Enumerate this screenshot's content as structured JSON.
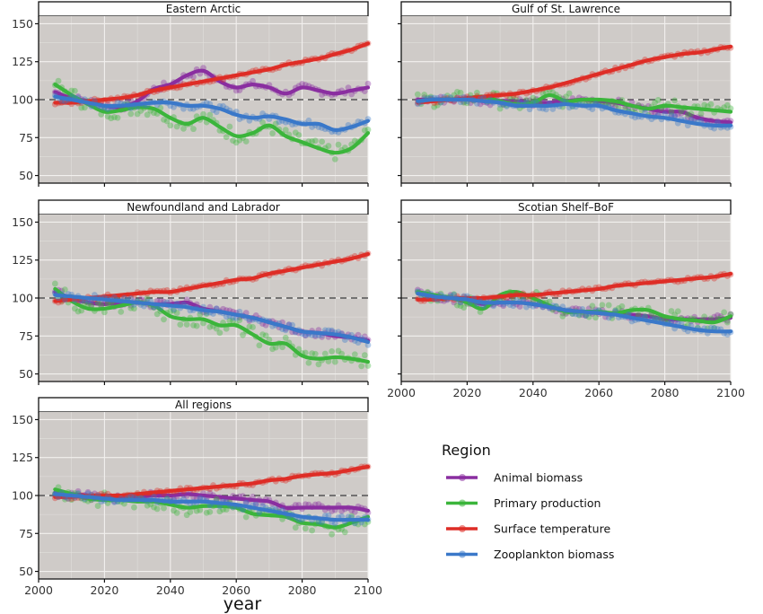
{
  "chart_data": {
    "type": "line",
    "title": "",
    "xlabel": "year",
    "ylabel": "",
    "xlim": [
      2000,
      2100
    ],
    "ylim": [
      45,
      155
    ],
    "x_ticks": [
      2000,
      2020,
      2040,
      2060,
      2080,
      2100
    ],
    "y_ticks": [
      50,
      75,
      100,
      125,
      150
    ],
    "reference_line": 100,
    "grid": true,
    "legend": {
      "title": "Region",
      "placement": "right",
      "entries": [
        "Animal biomass",
        "Primary production",
        "Surface temperature",
        "Zooplankton biomass"
      ]
    },
    "colors": {
      "Animal biomass": "#8a2ea0",
      "Primary production": "#3bb53b",
      "Surface temperature": "#de2d26",
      "Zooplankton biomass": "#3a78c9"
    },
    "x": [
      2005,
      2010,
      2015,
      2020,
      2025,
      2030,
      2035,
      2040,
      2045,
      2050,
      2055,
      2060,
      2065,
      2070,
      2075,
      2080,
      2085,
      2090,
      2095,
      2100
    ],
    "panels": [
      {
        "title": "Eastern Arctic",
        "series": [
          {
            "name": "Animal biomass",
            "values": [
              105,
              101,
              99,
              96,
              95,
              99,
              107,
              110,
              116,
              119,
              112,
              108,
              110,
              108,
              104,
              108,
              106,
              104,
              106,
              108
            ]
          },
          {
            "name": "Primary production",
            "values": [
              110,
              103,
              97,
              92,
              93,
              95,
              94,
              88,
              84,
              88,
              82,
              76,
              78,
              83,
              76,
              72,
              68,
              65,
              68,
              78
            ]
          },
          {
            "name": "Surface temperature",
            "values": [
              98,
              98,
              99,
              100,
              101,
              103,
              106,
              108,
              110,
              112,
              114,
              116,
              118,
              120,
              123,
              125,
              127,
              130,
              133,
              137
            ]
          },
          {
            "name": "Zooplankton biomass",
            "values": [
              102,
              100,
              98,
              96,
              96,
              97,
              98,
              98,
              96,
              96,
              94,
              90,
              88,
              89,
              87,
              84,
              84,
              80,
              82,
              86
            ]
          }
        ]
      },
      {
        "title": "Gulf of St. Lawrence",
        "series": [
          {
            "name": "Animal biomass",
            "values": [
              100,
              100,
              100,
              100,
              99,
              99,
              99,
              98,
              98,
              99,
              100,
              99,
              98,
              96,
              94,
              92,
              92,
              88,
              86,
              85
            ]
          },
          {
            "name": "Primary production",
            "values": [
              99,
              100,
              100,
              101,
              102,
              99,
              97,
              98,
              103,
              99,
              100,
              100,
              99,
              96,
              94,
              96,
              95,
              94,
              93,
              92
            ]
          },
          {
            "name": "Surface temperature",
            "values": [
              98,
              99,
              100,
              101,
              102,
              103,
              104,
              106,
              108,
              111,
              114,
              117,
              120,
              123,
              126,
              128,
              130,
              131,
              133,
              135
            ]
          },
          {
            "name": "Zooplankton biomass",
            "values": [
              99,
              100,
              100,
              100,
              99,
              98,
              96,
              96,
              96,
              97,
              96,
              96,
              93,
              91,
              89,
              88,
              86,
              84,
              83,
              83
            ]
          }
        ]
      },
      {
        "title": "Newfoundland and Labrador",
        "series": [
          {
            "name": "Animal biomass",
            "values": [
              104,
              100,
              97,
              96,
              97,
              97,
              96,
              96,
              97,
              93,
              91,
              89,
              87,
              84,
              81,
              78,
              77,
              75,
              74,
              72
            ]
          },
          {
            "name": "Primary production",
            "values": [
              106,
              98,
              93,
              93,
              95,
              97,
              95,
              88,
              86,
              86,
              82,
              82,
              76,
              70,
              70,
              62,
              60,
              61,
              60,
              58
            ]
          },
          {
            "name": "Surface temperature",
            "values": [
              98,
              99,
              100,
              101,
              102,
              103,
              104,
              104,
              106,
              108,
              110,
              112,
              113,
              116,
              118,
              120,
              122,
              124,
              126,
              129
            ]
          },
          {
            "name": "Zooplankton biomass",
            "values": [
              102,
              101,
              100,
              99,
              98,
              97,
              96,
              95,
              94,
              92,
              91,
              89,
              87,
              84,
              81,
              78,
              77,
              76,
              74,
              71
            ]
          }
        ]
      },
      {
        "title": "Scotian Shelf–BoF",
        "series": [
          {
            "name": "Animal biomass",
            "values": [
              103,
              101,
              100,
              98,
              96,
              97,
              97,
              96,
              94,
              92,
              91,
              90,
              90,
              89,
              88,
              86,
              86,
              86,
              86,
              87
            ]
          },
          {
            "name": "Primary production",
            "values": [
              104,
              102,
              100,
              97,
              93,
              102,
              104,
              100,
              95,
              91,
              91,
              91,
              90,
              92,
              92,
              88,
              86,
              85,
              84,
              88
            ]
          },
          {
            "name": "Surface temperature",
            "values": [
              99,
              99,
              100,
              100,
              100,
              101,
              102,
              102,
              103,
              104,
              105,
              106,
              108,
              109,
              110,
              111,
              112,
              113,
              114,
              116
            ]
          },
          {
            "name": "Zooplankton biomass",
            "values": [
              103,
              101,
              100,
              99,
              97,
              97,
              97,
              96,
              94,
              92,
              91,
              90,
              89,
              87,
              85,
              83,
              81,
              79,
              78,
              78
            ]
          }
        ]
      },
      {
        "title": "All regions",
        "series": [
          {
            "name": "Animal biomass",
            "values": [
              102,
              101,
              100,
              98,
              98,
              99,
              100,
              100,
              101,
              100,
              99,
              98,
              97,
              96,
              92,
              92,
              92,
              92,
              92,
              90
            ]
          },
          {
            "name": "Primary production",
            "values": [
              104,
              101,
              98,
              97,
              97,
              96,
              96,
              94,
              92,
              93,
              93,
              92,
              88,
              87,
              86,
              82,
              81,
              79,
              82,
              86
            ]
          },
          {
            "name": "Surface temperature",
            "values": [
              99,
              99,
              100,
              100,
              100,
              101,
              102,
              103,
              104,
              105,
              106,
              107,
              108,
              110,
              111,
              113,
              114,
              115,
              117,
              119
            ]
          },
          {
            "name": "Zooplankton biomass",
            "values": [
              101,
              100,
              99,
              98,
              97,
              97,
              97,
              96,
              96,
              96,
              95,
              94,
              92,
              90,
              88,
              86,
              85,
              84,
              84,
              84
            ]
          }
        ]
      }
    ]
  }
}
